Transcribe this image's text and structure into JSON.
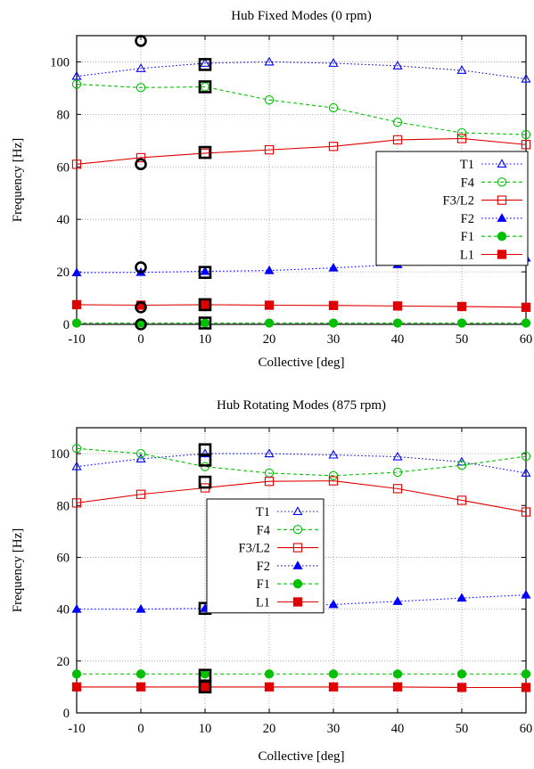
{
  "chart_data": [
    {
      "type": "line",
      "title": "Hub Fixed Modes (0 rpm)",
      "xlabel": "Collective [deg]",
      "ylabel": "Frequency [Hz]",
      "xlim": [
        -10,
        60
      ],
      "ylim": [
        0,
        110
      ],
      "xticks": [
        -10,
        0,
        10,
        20,
        30,
        40,
        50,
        60
      ],
      "yticks": [
        0,
        20,
        40,
        60,
        80,
        100
      ],
      "grid": true,
      "legend_position": "right",
      "x": [
        -10,
        0,
        10,
        20,
        30,
        40,
        50,
        60
      ],
      "series": [
        {
          "name": "T1",
          "values": [
            94.5,
            97.5,
            99.5,
            100,
            99.5,
            98.5,
            96.8,
            93.5
          ],
          "color": "#0000ff",
          "marker": "triangle-open",
          "dash": "dotted"
        },
        {
          "name": "F4",
          "values": [
            91.5,
            90.2,
            90.5,
            85.5,
            82.5,
            77,
            73,
            72.3
          ],
          "color": "#00c000",
          "marker": "circle-open",
          "dash": "dashed"
        },
        {
          "name": "F3/L2",
          "values": [
            61,
            63.5,
            65.2,
            66.5,
            67.8,
            70.3,
            70.8,
            68.5
          ],
          "color": "#e00000",
          "marker": "square-open",
          "dash": "solid"
        },
        {
          "name": "F2",
          "values": [
            19.7,
            19.8,
            20.2,
            20.5,
            21.5,
            22.8,
            24,
            25.3
          ],
          "color": "#0000ff",
          "marker": "triangle-filled",
          "dash": "dotted"
        },
        {
          "name": "F1",
          "values": [
            0.5,
            0.5,
            0.5,
            0.5,
            0.5,
            0.5,
            0.5,
            0.5
          ],
          "color": "#00c000",
          "marker": "circle-filled",
          "dash": "dashed"
        },
        {
          "name": "L1",
          "values": [
            7.5,
            7.3,
            7.5,
            7.3,
            7.2,
            7,
            6.8,
            6.5
          ],
          "color": "#e00000",
          "marker": "square-filled",
          "dash": "solid"
        }
      ],
      "experimental_points": [
        {
          "x": 0,
          "y": 108,
          "marker": "circle"
        },
        {
          "x": 0,
          "y": 61,
          "marker": "circle"
        },
        {
          "x": 0,
          "y": 21.7,
          "marker": "circle"
        },
        {
          "x": 0,
          "y": 6.5,
          "marker": "circle"
        },
        {
          "x": 0,
          "y": 0,
          "marker": "circle"
        },
        {
          "x": 10,
          "y": 99,
          "marker": "square"
        },
        {
          "x": 10,
          "y": 90.5,
          "marker": "square"
        },
        {
          "x": 10,
          "y": 65.5,
          "marker": "square"
        },
        {
          "x": 10,
          "y": 19.8,
          "marker": "square"
        },
        {
          "x": 10,
          "y": 7.5,
          "marker": "square"
        },
        {
          "x": 10,
          "y": 0.5,
          "marker": "square"
        }
      ]
    },
    {
      "type": "line",
      "title": "Hub Rotating Modes (875 rpm)",
      "xlabel": "Collective [deg]",
      "ylabel": "Frequency [Hz]",
      "xlim": [
        -10,
        60
      ],
      "ylim": [
        0,
        110
      ],
      "xticks": [
        -10,
        0,
        10,
        20,
        30,
        40,
        50,
        60
      ],
      "yticks": [
        0,
        20,
        40,
        60,
        80,
        100
      ],
      "grid": true,
      "legend_position": "center-left",
      "x": [
        -10,
        0,
        10,
        20,
        30,
        40,
        50,
        60
      ],
      "series": [
        {
          "name": "T1",
          "values": [
            95,
            98,
            100,
            100,
            99.5,
            98.8,
            96.8,
            92.5
          ],
          "color": "#0000ff",
          "marker": "triangle-open",
          "dash": "dotted"
        },
        {
          "name": "F4",
          "values": [
            102,
            100,
            95,
            92.5,
            91.5,
            92.8,
            95.5,
            99
          ],
          "color": "#00c000",
          "marker": "circle-open",
          "dash": "dashed"
        },
        {
          "name": "F3/L2",
          "values": [
            81,
            84.3,
            86.8,
            89.3,
            89.5,
            86.5,
            82,
            77.5
          ],
          "color": "#e00000",
          "marker": "square-open",
          "dash": "solid"
        },
        {
          "name": "F2",
          "values": [
            40,
            40,
            40.3,
            41,
            41.8,
            43,
            44.3,
            45.5
          ],
          "color": "#0000ff",
          "marker": "triangle-filled",
          "dash": "dotted"
        },
        {
          "name": "F1",
          "values": [
            15,
            15,
            15,
            15,
            15,
            15,
            15,
            15
          ],
          "color": "#00c000",
          "marker": "circle-filled",
          "dash": "dashed"
        },
        {
          "name": "L1",
          "values": [
            10,
            10,
            10,
            10,
            10,
            10,
            9.8,
            9.8
          ],
          "color": "#e00000",
          "marker": "square-filled",
          "dash": "solid"
        }
      ],
      "experimental_points": [
        {
          "x": 10,
          "y": 101.5,
          "marker": "square"
        },
        {
          "x": 10,
          "y": 97.5,
          "marker": "square"
        },
        {
          "x": 10,
          "y": 89,
          "marker": "square"
        },
        {
          "x": 10,
          "y": 40.3,
          "marker": "square"
        },
        {
          "x": 10,
          "y": 14.5,
          "marker": "square"
        },
        {
          "x": 10,
          "y": 10,
          "marker": "square"
        }
      ]
    }
  ]
}
